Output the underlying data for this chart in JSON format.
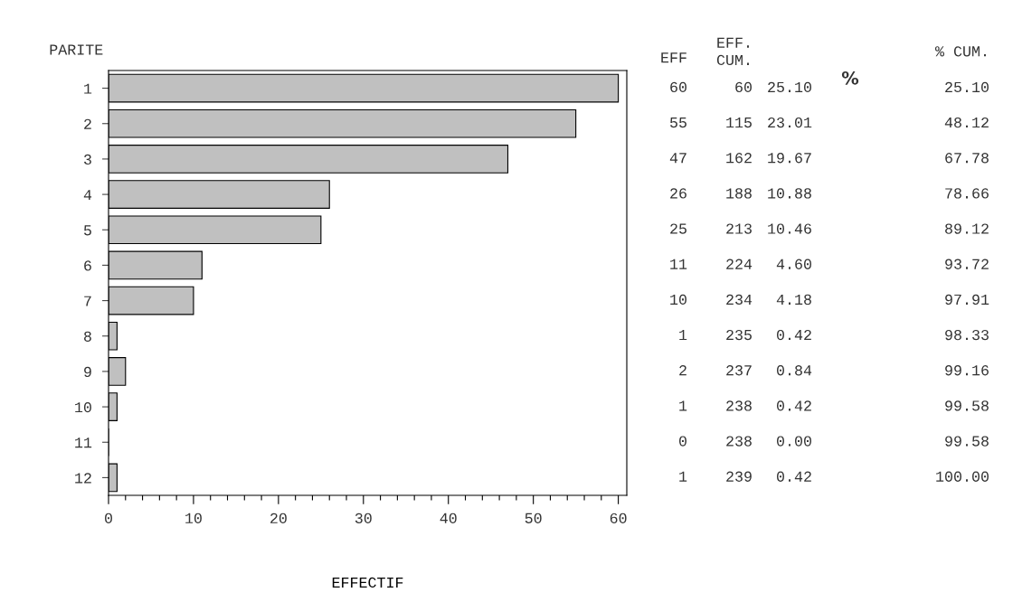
{
  "chart_data": {
    "type": "bar",
    "orientation": "horizontal",
    "xlabel": "EFFECTIF",
    "ylabel": "PARITE",
    "categories": [
      "1",
      "2",
      "3",
      "4",
      "5",
      "6",
      "7",
      "8",
      "9",
      "10",
      "11",
      "12"
    ],
    "values": [
      60,
      55,
      47,
      26,
      25,
      11,
      10,
      1,
      2,
      1,
      0,
      1
    ],
    "color": "#c0c0c0",
    "xlim": [
      0,
      61
    ],
    "xticks": [
      0,
      {
        "value": 2,
        "label": null
      },
      {
        "value": 4,
        "label": null
      },
      {
        "value": 6,
        "label": null
      },
      {
        "value": 8,
        "label": null
      },
      10,
      {
        "value": 12,
        "label": null
      },
      {
        "value": 14,
        "label": null
      },
      {
        "value": 16,
        "label": null
      },
      {
        "value": 18,
        "label": null
      },
      20,
      {
        "value": 22,
        "label": null
      },
      {
        "value": 24,
        "label": null
      },
      {
        "value": 26,
        "label": null
      },
      {
        "value": 28,
        "label": null
      },
      30,
      {
        "value": 32,
        "label": null
      },
      {
        "value": 34,
        "label": null
      },
      {
        "value": 36,
        "label": null
      },
      {
        "value": 38,
        "label": null
      },
      40,
      {
        "value": 42,
        "label": null
      },
      {
        "value": 44,
        "label": null
      },
      {
        "value": 46,
        "label": null
      },
      {
        "value": 48,
        "label": null
      },
      50,
      {
        "value": 52,
        "label": null
      },
      {
        "value": 54,
        "label": null
      },
      {
        "value": 56,
        "label": null
      },
      {
        "value": 58,
        "label": null
      },
      60
    ],
    "grid": false,
    "data_labels": true,
    "annotations": [
      "EFF",
      "EFF.\nCUM.",
      "%",
      "% CUM.",
      "60",
      "25.10",
      "25.10",
      "115",
      "23.01",
      "48.12",
      "162",
      "19.67",
      "67.78",
      "188",
      "10.88",
      "78.66",
      "213",
      "10.46",
      "89.12",
      "224",
      "4.60",
      "93.72",
      "234",
      "4.18",
      "97.91",
      "235",
      "0.42",
      "98.33",
      "237",
      "0.84",
      "99.16",
      "238",
      "0.42",
      "99.58",
      "238",
      "0.00",
      "99.58",
      "239",
      "0.42",
      "100.00"
    ]
  }
}
